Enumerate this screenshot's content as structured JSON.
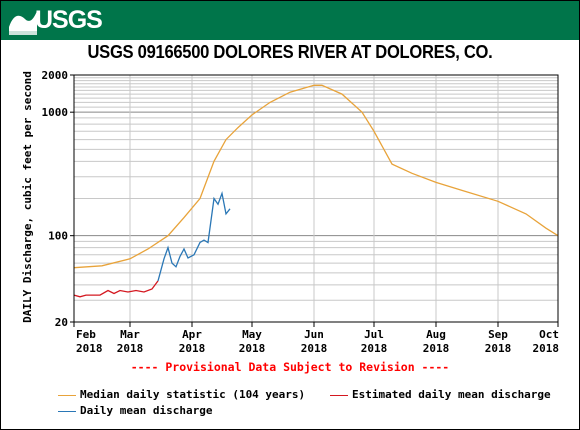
{
  "header": {
    "logo_text": "USGS",
    "color": "#00754a"
  },
  "chart_data": {
    "type": "line",
    "title": "USGS 09166500 DOLORES RIVER AT DOLORES, CO.",
    "ylabel": "DAILY Discharge, cubic feet per second",
    "xlabel": "",
    "yscale": "log",
    "ylim": [
      20,
      2000
    ],
    "y_ticks": [
      "20",
      "100",
      "1000",
      "2000"
    ],
    "x_ticks": [
      {
        "date": "2018-02-01",
        "month": "Feb",
        "year": "2018"
      },
      {
        "date": "2018-03-01",
        "month": "Mar",
        "year": "2018"
      },
      {
        "date": "2018-04-01",
        "month": "Apr",
        "year": "2018"
      },
      {
        "date": "2018-05-01",
        "month": "May",
        "year": "2018"
      },
      {
        "date": "2018-06-01",
        "month": "Jun",
        "year": "2018"
      },
      {
        "date": "2018-07-01",
        "month": "Jul",
        "year": "2018"
      },
      {
        "date": "2018-08-01",
        "month": "Aug",
        "year": "2018"
      },
      {
        "date": "2018-09-01",
        "month": "Sep",
        "year": "2018"
      },
      {
        "date": "2018-10-01",
        "month": "Oct",
        "year": "2018"
      }
    ],
    "grid": true,
    "legend_position": "bottom",
    "series": [
      {
        "name": "Median daily statistic (104 years)",
        "color": "#e8a33a",
        "x": [
          "2018-02-01",
          "2018-02-15",
          "2018-03-01",
          "2018-03-10",
          "2018-03-20",
          "2018-03-28",
          "2018-04-05",
          "2018-04-12",
          "2018-04-18",
          "2018-04-24",
          "2018-05-01",
          "2018-05-10",
          "2018-05-20",
          "2018-06-01",
          "2018-06-05",
          "2018-06-15",
          "2018-06-25",
          "2018-07-01",
          "2018-07-10",
          "2018-07-20",
          "2018-08-01",
          "2018-08-15",
          "2018-09-01",
          "2018-09-15",
          "2018-09-25",
          "2018-10-01"
        ],
        "y": [
          55,
          57,
          65,
          78,
          100,
          140,
          200,
          400,
          600,
          750,
          950,
          1200,
          1450,
          1650,
          1650,
          1400,
          1000,
          700,
          380,
          320,
          270,
          230,
          190,
          150,
          115,
          100
        ]
      },
      {
        "name": "Estimated daily mean discharge",
        "color": "#d41820",
        "x": [
          "2018-02-01",
          "2018-02-04",
          "2018-02-07",
          "2018-02-11",
          "2018-02-14",
          "2018-02-18",
          "2018-02-21",
          "2018-02-24",
          "2018-02-28",
          "2018-03-04",
          "2018-03-08",
          "2018-03-12",
          "2018-03-15"
        ],
        "y": [
          33,
          32,
          33,
          33,
          33,
          36,
          34,
          36,
          35,
          36,
          35,
          37,
          43
        ]
      },
      {
        "name": "Daily mean discharge",
        "color": "#2a77b6",
        "x": [
          "2018-03-15",
          "2018-03-18",
          "2018-03-20",
          "2018-03-22",
          "2018-03-24",
          "2018-03-26",
          "2018-03-28",
          "2018-03-30",
          "2018-04-02",
          "2018-04-05",
          "2018-04-07",
          "2018-04-09",
          "2018-04-12",
          "2018-04-14",
          "2018-04-16",
          "2018-04-18",
          "2018-04-20"
        ],
        "y": [
          43,
          65,
          80,
          60,
          56,
          68,
          78,
          66,
          70,
          88,
          92,
          88,
          200,
          180,
          220,
          150,
          165
        ]
      }
    ]
  },
  "footer": {
    "provisional_note": "---- Provisional Data Subject to Revision ----"
  }
}
